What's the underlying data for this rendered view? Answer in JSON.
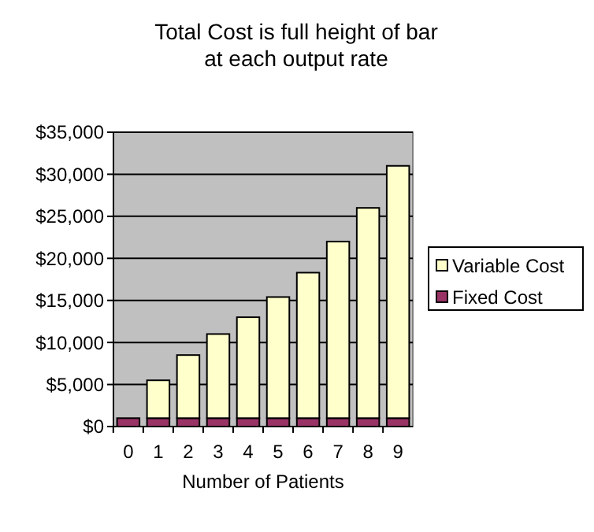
{
  "chart_data": {
    "type": "bar",
    "title": "Total Cost is full height of bar\nat each output rate",
    "xlabel": "Number of Patients",
    "categories": [
      "0",
      "1",
      "2",
      "3",
      "4",
      "5",
      "6",
      "7",
      "8",
      "9"
    ],
    "stacked": true,
    "series": [
      {
        "name": "Fixed Cost",
        "color": "#993366",
        "values": [
          1000,
          1000,
          1000,
          1000,
          1000,
          1000,
          1000,
          1000,
          1000,
          1000
        ]
      },
      {
        "name": "Variable Cost",
        "color": "#ffffcc",
        "values": [
          0,
          4500,
          7500,
          10000,
          12000,
          14400,
          17300,
          21000,
          25000,
          30000
        ]
      }
    ],
    "ylim": [
      0,
      35000
    ],
    "yticks": [
      {
        "value": 0,
        "label": "$0"
      },
      {
        "value": 5000,
        "label": "$5,000"
      },
      {
        "value": 10000,
        "label": "$10,000"
      },
      {
        "value": 15000,
        "label": "$15,000"
      },
      {
        "value": 20000,
        "label": "$20,000"
      },
      {
        "value": 25000,
        "label": "$25,000"
      },
      {
        "value": 30000,
        "label": "$30,000"
      },
      {
        "value": 35000,
        "label": "$35,000"
      }
    ],
    "grid": "y",
    "legend": "right"
  }
}
